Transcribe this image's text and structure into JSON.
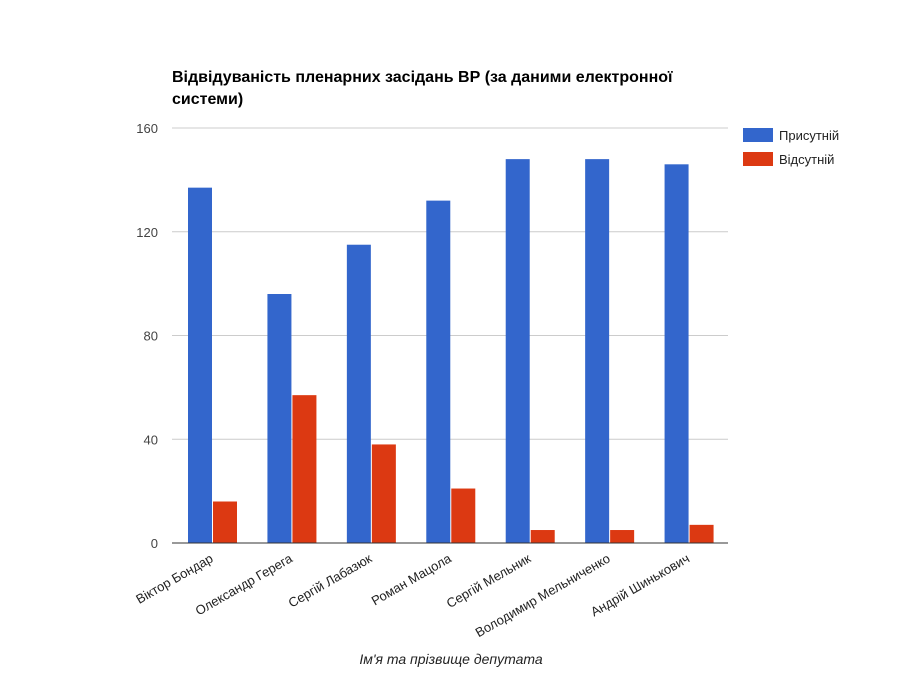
{
  "chart_data": {
    "type": "bar",
    "title_lines": [
      "Відвідуваність пленарних засідань ВР (за даними електронної",
      "системи)"
    ],
    "xlabel": "Ім'я та прізвище депутата",
    "ylabel": "",
    "ylim": [
      0,
      160
    ],
    "yticks": [
      "0",
      "40",
      "80",
      "120",
      "160"
    ],
    "grid": true,
    "legend_position": "right",
    "categories": [
      "Віктор Бондар",
      "Олександр Герега",
      "Сергій Лабазюк",
      "Роман Мацола",
      "Сергій Мельник",
      "Володимир Мельниченко",
      "Андрій Шинькович"
    ],
    "series": [
      {
        "name": "Присутній",
        "color": "#3366cc",
        "values": [
          137,
          96,
          115,
          132,
          148,
          148,
          146
        ]
      },
      {
        "name": "Відсутній",
        "color": "#dc3912",
        "values": [
          16,
          57,
          38,
          21,
          5,
          5,
          7
        ]
      }
    ]
  }
}
